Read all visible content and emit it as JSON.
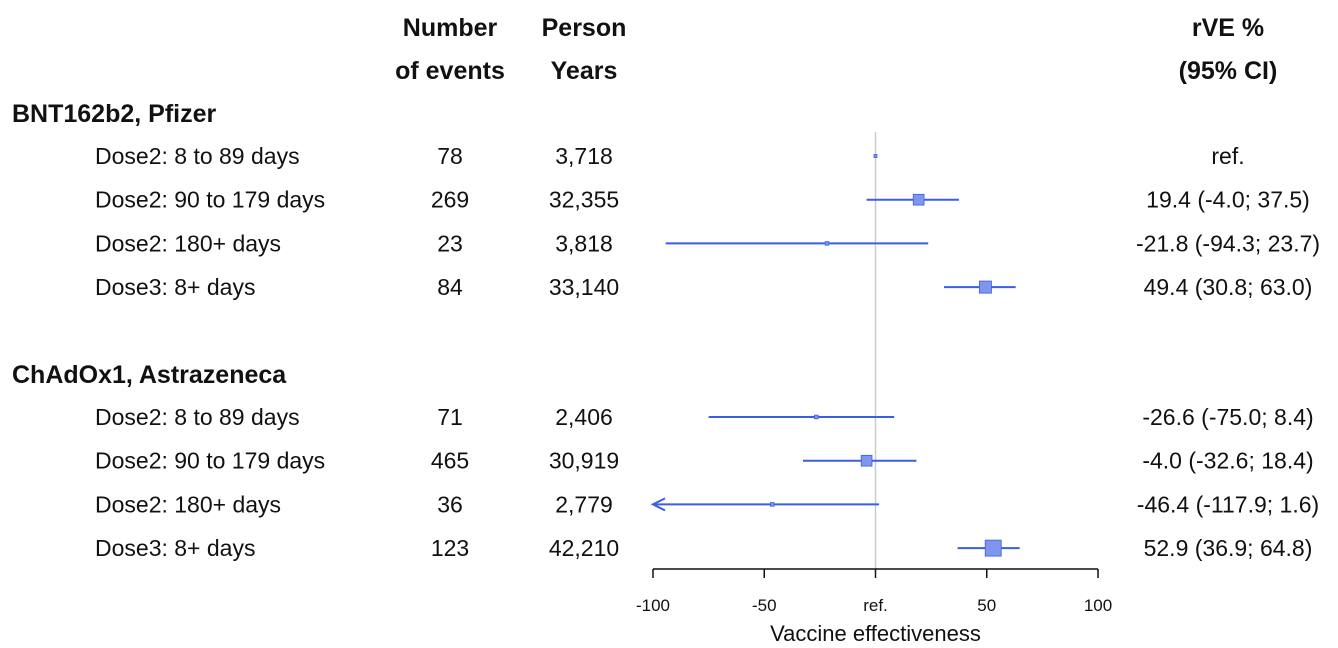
{
  "headers": {
    "events": [
      "Number",
      "of events"
    ],
    "person_years": [
      "Person",
      "Years"
    ],
    "rve": [
      "rVE %",
      "(95% CI)"
    ]
  },
  "colors": {
    "ci": "#3a5ee6",
    "box": "#7f96ec",
    "ref_line": "#cccccc",
    "text": "#111111"
  },
  "chart_data": {
    "type": "forest",
    "xlabel": "Vaccine effectiveness",
    "xlim": [
      -100,
      100
    ],
    "ticks": [
      -100,
      -50,
      0,
      50,
      100
    ],
    "tick_labels": [
      "-100",
      "-50",
      "ref.",
      "50",
      "100"
    ],
    "groups": [
      {
        "name": "BNT162b2, Pfizer",
        "rows": [
          {
            "label": "Dose2: 8 to 89 days",
            "events": "78",
            "person_years": "3,718",
            "rve": 0,
            "lo": null,
            "hi": null,
            "rve_text": "ref.",
            "weight": 0.0
          },
          {
            "label": "Dose2: 90 to 179 days",
            "events": "269",
            "person_years": "32,355",
            "rve": 19.4,
            "lo": -4.0,
            "hi": 37.5,
            "rve_text": "19.4 (-4.0; 37.5)",
            "weight": 0.6
          },
          {
            "label": "Dose2: 180+ days",
            "events": "23",
            "person_years": "3,818",
            "rve": -21.8,
            "lo": -94.3,
            "hi": 23.7,
            "rve_text": "-21.8 (-94.3; 23.7)",
            "weight": 0.05
          },
          {
            "label": "Dose3: 8+ days",
            "events": "84",
            "person_years": "33,140",
            "rve": 49.4,
            "lo": 30.8,
            "hi": 63.0,
            "rve_text": "49.4 (30.8; 63.0)",
            "weight": 0.7
          }
        ]
      },
      {
        "name": "ChAdOx1, Astrazeneca",
        "rows": [
          {
            "label": "Dose2: 8 to 89 days",
            "events": "71",
            "person_years": "2,406",
            "rve": -26.6,
            "lo": -75.0,
            "hi": 8.4,
            "rve_text": "-26.6 (-75.0; 8.4)",
            "weight": 0.05
          },
          {
            "label": "Dose2: 90 to 179 days",
            "events": "465",
            "person_years": "30,919",
            "rve": -4.0,
            "lo": -32.6,
            "hi": 18.4,
            "rve_text": "-4.0 (-32.6; 18.4)",
            "weight": 0.6
          },
          {
            "label": "Dose2: 180+ days",
            "events": "36",
            "person_years": "2,779",
            "rve": -46.4,
            "lo": -117.9,
            "hi": 1.6,
            "rve_text": "-46.4 (-117.9; 1.6)",
            "weight": 0.05
          },
          {
            "label": "Dose3: 8+ days",
            "events": "123",
            "person_years": "42,210",
            "rve": 52.9,
            "lo": 36.9,
            "hi": 64.8,
            "rve_text": "52.9 (36.9; 64.8)",
            "weight": 1.0
          }
        ]
      }
    ]
  }
}
